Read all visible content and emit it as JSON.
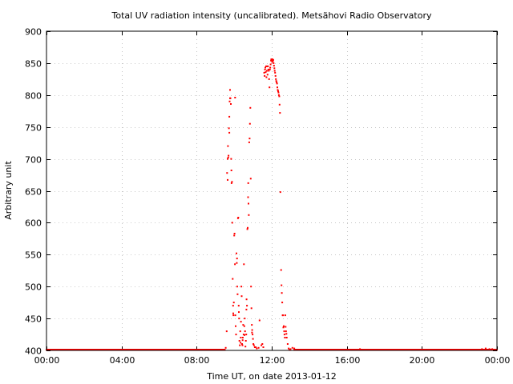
{
  "chart_data": {
    "type": "scatter",
    "title": "Total UV radiation intensity (uncalibrated). Metsähovi Radio Observatory",
    "xlabel": "Time UT, on date 2013-01-12",
    "ylabel": "Arbitrary unit",
    "xlim": [
      0,
      24
    ],
    "ylim": [
      400,
      900
    ],
    "x_ticks": [
      {
        "value": 0,
        "label": "00:00"
      },
      {
        "value": 4,
        "label": "04:00"
      },
      {
        "value": 8,
        "label": "08:00"
      },
      {
        "value": 12,
        "label": "12:00"
      },
      {
        "value": 16,
        "label": "16:00"
      },
      {
        "value": 20,
        "label": "20:00"
      },
      {
        "value": 24,
        "label": "00:00"
      }
    ],
    "y_ticks": [
      {
        "value": 400,
        "label": "400"
      },
      {
        "value": 450,
        "label": "450"
      },
      {
        "value": 500,
        "label": "500"
      },
      {
        "value": 550,
        "label": "550"
      },
      {
        "value": 600,
        "label": "600"
      },
      {
        "value": 650,
        "label": "650"
      },
      {
        "value": 700,
        "label": "700"
      },
      {
        "value": 750,
        "label": "750"
      },
      {
        "value": 800,
        "label": "800"
      },
      {
        "value": 850,
        "label": "850"
      },
      {
        "value": 900,
        "label": "900"
      }
    ],
    "grid": true,
    "marker_color": "#ff0000",
    "baseline": {
      "value": 401,
      "ranges": [
        [
          0,
          9.5
        ],
        [
          13.2,
          24
        ]
      ]
    },
    "series": [
      {
        "points": [
          [
            9.55,
            404
          ],
          [
            9.6,
            430
          ],
          [
            9.62,
            678
          ],
          [
            9.65,
            700
          ],
          [
            9.67,
            720
          ],
          [
            9.7,
            705
          ],
          [
            9.72,
            748
          ],
          [
            9.74,
            766
          ],
          [
            9.76,
            790
          ],
          [
            9.78,
            808
          ],
          [
            9.8,
            795
          ],
          [
            9.82,
            786
          ],
          [
            9.84,
            700
          ],
          [
            9.86,
            662
          ],
          [
            9.88,
            664
          ],
          [
            9.9,
            600
          ],
          [
            9.92,
            512
          ],
          [
            9.94,
            470
          ],
          [
            9.96,
            455
          ],
          [
            9.98,
            475
          ],
          [
            10.0,
            580
          ],
          [
            10.02,
            583
          ],
          [
            10.04,
            535
          ],
          [
            10.06,
            455
          ],
          [
            10.08,
            438
          ],
          [
            10.1,
            425
          ],
          [
            10.12,
            552
          ],
          [
            10.14,
            537
          ],
          [
            10.16,
            500
          ],
          [
            10.18,
            488
          ],
          [
            10.2,
            607
          ],
          [
            10.22,
            608
          ],
          [
            10.24,
            470
          ],
          [
            10.26,
            450
          ],
          [
            10.28,
            415
          ],
          [
            10.3,
            408
          ],
          [
            10.32,
            430
          ],
          [
            10.34,
            412
          ],
          [
            10.36,
            445
          ],
          [
            10.38,
            500
          ],
          [
            10.4,
            485
          ],
          [
            10.42,
            410
          ],
          [
            10.44,
            408
          ],
          [
            10.46,
            420
          ],
          [
            10.48,
            440
          ],
          [
            10.5,
            425
          ],
          [
            10.52,
            535
          ],
          [
            10.54,
            438
          ],
          [
            10.56,
            450
          ],
          [
            10.58,
            430
          ],
          [
            10.6,
            406
          ],
          [
            10.62,
            415
          ],
          [
            10.64,
            425
          ],
          [
            10.66,
            480
          ],
          [
            10.68,
            470
          ],
          [
            10.7,
            590
          ],
          [
            10.72,
            592
          ],
          [
            10.74,
            640
          ],
          [
            10.76,
            630
          ],
          [
            10.78,
            612
          ],
          [
            10.8,
            726
          ],
          [
            10.82,
            732
          ],
          [
            10.84,
            755
          ],
          [
            10.86,
            780
          ],
          [
            10.88,
            669
          ],
          [
            10.9,
            500
          ],
          [
            10.92,
            466
          ],
          [
            10.94,
            440
          ],
          [
            10.96,
            432
          ],
          [
            10.98,
            425
          ],
          [
            11.0,
            418
          ],
          [
            11.02,
            410
          ],
          [
            11.05,
            408
          ],
          [
            11.1,
            405
          ],
          [
            11.15,
            405
          ],
          [
            11.2,
            403
          ],
          [
            11.3,
            404
          ],
          [
            11.35,
            447
          ],
          [
            11.45,
            408
          ],
          [
            11.5,
            410
          ],
          [
            11.55,
            405
          ],
          [
            9.65,
            667
          ],
          [
            9.68,
            702
          ],
          [
            9.74,
            741
          ],
          [
            9.78,
            795
          ],
          [
            9.85,
            682
          ],
          [
            9.95,
            458
          ],
          [
            10.05,
            796
          ],
          [
            10.15,
            544
          ],
          [
            10.25,
            460
          ],
          [
            10.35,
            420
          ],
          [
            10.45,
            416
          ],
          [
            10.55,
            424
          ],
          [
            10.65,
            464
          ],
          [
            10.75,
            662
          ],
          [
            10.95,
            428
          ],
          [
            11.6,
            835
          ],
          [
            11.62,
            830
          ],
          [
            11.64,
            840
          ],
          [
            11.66,
            843
          ],
          [
            11.68,
            836
          ],
          [
            11.7,
            845
          ],
          [
            11.72,
            828
          ],
          [
            11.74,
            838
          ],
          [
            11.76,
            845
          ],
          [
            11.78,
            832
          ],
          [
            11.8,
            845
          ],
          [
            11.82,
            840
          ],
          [
            11.84,
            838
          ],
          [
            11.86,
            825
          ],
          [
            11.88,
            812
          ],
          [
            11.9,
            840
          ],
          [
            11.92,
            843
          ],
          [
            11.94,
            848
          ],
          [
            11.96,
            854
          ],
          [
            11.98,
            856
          ],
          [
            12.0,
            855
          ],
          [
            12.02,
            852
          ],
          [
            12.04,
            856
          ],
          [
            12.06,
            853
          ],
          [
            12.08,
            855
          ],
          [
            12.1,
            850
          ],
          [
            12.12,
            846
          ],
          [
            12.14,
            842
          ],
          [
            12.16,
            838
          ],
          [
            12.18,
            835
          ],
          [
            12.2,
            830
          ],
          [
            12.22,
            825
          ],
          [
            12.24,
            822
          ],
          [
            12.26,
            820
          ],
          [
            12.28,
            818
          ],
          [
            12.3,
            812
          ],
          [
            12.32,
            808
          ],
          [
            12.34,
            806
          ],
          [
            12.36,
            804
          ],
          [
            12.38,
            800
          ],
          [
            12.4,
            798
          ],
          [
            12.42,
            785
          ],
          [
            12.44,
            772
          ],
          [
            12.46,
            648
          ],
          [
            12.5,
            526
          ],
          [
            12.52,
            502
          ],
          [
            12.54,
            490
          ],
          [
            12.56,
            475
          ],
          [
            12.58,
            455
          ],
          [
            12.6,
            455
          ],
          [
            12.62,
            436
          ],
          [
            12.64,
            438
          ],
          [
            12.66,
            430
          ],
          [
            12.68,
            425
          ],
          [
            12.7,
            420
          ],
          [
            12.72,
            455
          ],
          [
            12.74,
            437
          ],
          [
            12.76,
            430
          ],
          [
            12.78,
            426
          ],
          [
            12.8,
            420
          ],
          [
            12.85,
            410
          ],
          [
            12.9,
            403
          ],
          [
            12.95,
            401
          ],
          [
            13.0,
            402
          ],
          [
            13.1,
            404
          ],
          [
            13.2,
            403
          ],
          [
            16.7,
            402
          ],
          [
            20.9,
            401
          ],
          [
            23.2,
            402
          ],
          [
            23.4,
            403
          ],
          [
            23.6,
            402
          ],
          [
            23.75,
            402
          ]
        ]
      }
    ]
  }
}
